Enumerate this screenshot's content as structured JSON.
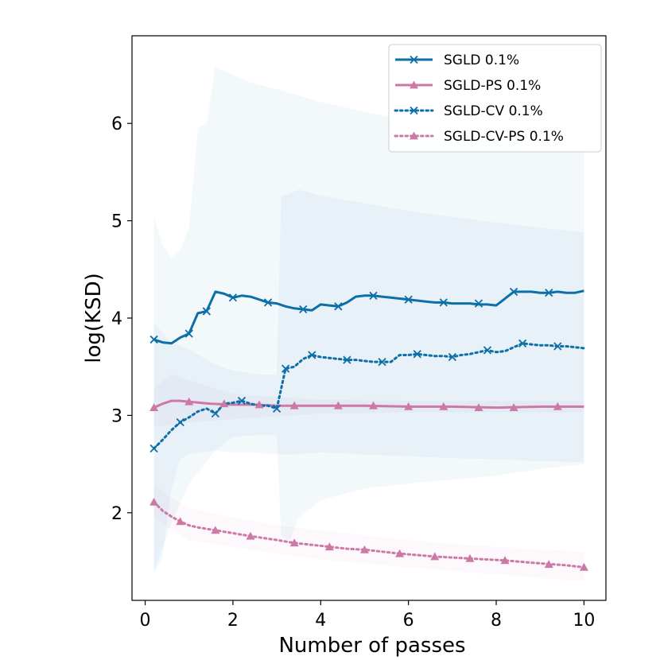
{
  "chart_data": {
    "type": "line",
    "title": "",
    "xlabel": "Number of passes",
    "ylabel": "log(KSD)",
    "xlim": [
      -0.3,
      10.5
    ],
    "ylim": [
      1.1,
      6.9
    ],
    "xticks": [
      0,
      2,
      4,
      6,
      8,
      10
    ],
    "yticks": [
      2,
      3,
      4,
      5,
      6
    ],
    "xtick_labels": [
      "0",
      "2",
      "4",
      "6",
      "8",
      "10"
    ],
    "ytick_labels": [
      "2",
      "3",
      "4",
      "5",
      "6"
    ],
    "grid": false,
    "legend_position": "top-right",
    "series": [
      {
        "name": "SGLD 0.1%",
        "color": "#0c6fa8",
        "linestyle": "solid",
        "marker": "x",
        "x": [
          0.2,
          0.4,
          0.6,
          0.8,
          1.0,
          1.2,
          1.4,
          1.6,
          1.8,
          2.0,
          2.2,
          2.4,
          2.6,
          2.8,
          3.0,
          3.2,
          3.4,
          3.6,
          3.8,
          4.0,
          4.2,
          4.4,
          4.6,
          4.8,
          5.0,
          5.2,
          5.4,
          5.6,
          5.8,
          6.0,
          6.2,
          6.4,
          6.6,
          6.8,
          7.0,
          7.2,
          7.4,
          7.6,
          7.8,
          8.0,
          8.2,
          8.4,
          8.6,
          8.8,
          9.0,
          9.2,
          9.4,
          9.6,
          9.8,
          10.0
        ],
        "values": [
          3.78,
          3.75,
          3.74,
          3.8,
          3.84,
          4.05,
          4.07,
          4.27,
          4.25,
          4.21,
          4.23,
          4.22,
          4.19,
          4.16,
          4.15,
          4.12,
          4.1,
          4.09,
          4.08,
          4.14,
          4.13,
          4.12,
          4.16,
          4.22,
          4.23,
          4.23,
          4.22,
          4.21,
          4.2,
          4.19,
          4.18,
          4.17,
          4.16,
          4.16,
          4.15,
          4.15,
          4.15,
          4.14,
          4.14,
          4.13,
          4.2,
          4.27,
          4.27,
          4.27,
          4.26,
          4.26,
          4.27,
          4.26,
          4.26,
          4.28
        ],
        "markers_x": [
          0.2,
          1.0,
          1.4,
          2.0,
          2.8,
          3.6,
          4.4,
          5.2,
          6.0,
          6.8,
          7.6,
          8.4,
          9.2
        ],
        "markers_y": [
          3.78,
          3.84,
          4.07,
          4.21,
          4.16,
          4.09,
          4.12,
          4.23,
          4.19,
          4.16,
          4.15,
          4.27,
          4.26
        ],
        "band_x": [
          0.2,
          0.4,
          0.6,
          0.8,
          1.0,
          1.2,
          1.4,
          1.6,
          2.0,
          2.4,
          3.0,
          3.4,
          4.0,
          5.0,
          6.0,
          7.0,
          8.0,
          9.0,
          10.0
        ],
        "band_upper": [
          5.05,
          4.75,
          4.62,
          4.7,
          4.93,
          5.95,
          6.0,
          6.58,
          6.5,
          6.42,
          6.35,
          6.3,
          6.22,
          6.12,
          6.02,
          5.95,
          5.85,
          5.8,
          5.75
        ],
        "band_lower": [
          1.38,
          1.55,
          2.25,
          2.55,
          2.6,
          2.62,
          2.63,
          2.64,
          2.62,
          2.62,
          2.6,
          2.6,
          2.62,
          2.6,
          2.58,
          2.56,
          2.55,
          2.53,
          2.52
        ]
      },
      {
        "name": "SGLD-PS 0.1%",
        "color": "#cc79a7",
        "linestyle": "solid",
        "marker": "triangle",
        "x": [
          0.2,
          0.4,
          0.6,
          0.8,
          1.0,
          1.5,
          2.0,
          2.5,
          3.0,
          3.5,
          4.0,
          5.0,
          6.0,
          7.0,
          8.0,
          9.0,
          10.0
        ],
        "values": [
          3.08,
          3.12,
          3.15,
          3.15,
          3.14,
          3.12,
          3.11,
          3.11,
          3.1,
          3.1,
          3.1,
          3.1,
          3.09,
          3.09,
          3.08,
          3.09,
          3.09
        ],
        "markers_x": [
          0.2,
          1.0,
          1.8,
          2.6,
          3.4,
          4.4,
          5.2,
          6.0,
          6.8,
          7.6,
          8.4,
          9.4
        ],
        "markers_y": [
          3.08,
          3.14,
          3.12,
          3.11,
          3.1,
          3.1,
          3.1,
          3.09,
          3.09,
          3.08,
          3.08,
          3.09
        ],
        "band_x": [
          0.2,
          0.6,
          1.0,
          2.0,
          4.0,
          6.0,
          8.0,
          10.0
        ],
        "band_upper": [
          3.28,
          3.42,
          3.36,
          3.22,
          3.16,
          3.15,
          3.15,
          3.15
        ],
        "band_lower": [
          2.88,
          2.9,
          2.93,
          2.96,
          3.02,
          3.03,
          3.03,
          3.03
        ]
      },
      {
        "name": "SGLD-CV 0.1%",
        "color": "#0c6fa8",
        "linestyle": "dotted",
        "marker": "x",
        "x": [
          0.2,
          0.4,
          0.6,
          0.8,
          1.0,
          1.2,
          1.4,
          1.6,
          1.8,
          2.0,
          2.2,
          2.4,
          2.6,
          2.8,
          3.0,
          3.2,
          3.4,
          3.6,
          3.8,
          4.0,
          4.2,
          4.4,
          4.6,
          4.8,
          5.0,
          5.2,
          5.4,
          5.6,
          5.8,
          6.0,
          6.2,
          6.4,
          6.6,
          6.8,
          7.0,
          7.2,
          7.4,
          7.6,
          7.8,
          8.0,
          8.2,
          8.4,
          8.6,
          8.8,
          9.0,
          9.2,
          9.4,
          9.6,
          9.8,
          10.0
        ],
        "values": [
          2.66,
          2.75,
          2.85,
          2.93,
          2.98,
          3.04,
          3.07,
          3.02,
          3.12,
          3.13,
          3.15,
          3.12,
          3.1,
          3.1,
          3.07,
          3.48,
          3.5,
          3.58,
          3.62,
          3.6,
          3.59,
          3.58,
          3.57,
          3.57,
          3.56,
          3.55,
          3.55,
          3.55,
          3.62,
          3.62,
          3.63,
          3.62,
          3.61,
          3.61,
          3.6,
          3.62,
          3.63,
          3.65,
          3.67,
          3.65,
          3.66,
          3.7,
          3.74,
          3.73,
          3.72,
          3.72,
          3.71,
          3.71,
          3.7,
          3.69
        ],
        "markers_x": [
          0.2,
          0.8,
          1.6,
          2.2,
          3.0,
          3.2,
          3.8,
          4.6,
          5.4,
          6.2,
          7.0,
          7.8,
          8.6,
          9.4
        ],
        "markers_y": [
          2.66,
          2.93,
          3.02,
          3.15,
          3.07,
          3.48,
          3.62,
          3.57,
          3.55,
          3.63,
          3.6,
          3.67,
          3.74,
          3.71
        ],
        "band_x": [
          0.2,
          0.6,
          1.0,
          1.6,
          2.0,
          2.6,
          3.0,
          3.1,
          3.3,
          3.5,
          4.0,
          5.0,
          6.0,
          7.0,
          8.0,
          9.0,
          10.0
        ],
        "band_upper": [
          3.95,
          3.75,
          3.68,
          3.52,
          3.46,
          3.42,
          3.42,
          5.25,
          5.28,
          5.32,
          5.26,
          5.18,
          5.1,
          5.04,
          4.98,
          4.93,
          4.88
        ],
        "band_lower": [
          1.4,
          1.9,
          2.3,
          2.64,
          2.78,
          2.8,
          2.8,
          1.75,
          1.72,
          1.95,
          2.13,
          2.25,
          2.3,
          2.34,
          2.38,
          2.45,
          2.5
        ]
      },
      {
        "name": "SGLD-CV-PS 0.1%",
        "color": "#cc79a7",
        "linestyle": "dotted",
        "marker": "triangle",
        "x": [
          0.2,
          0.4,
          0.6,
          0.8,
          1.0,
          1.2,
          1.6,
          2.0,
          2.4,
          3.0,
          3.4,
          4.0,
          4.6,
          5.0,
          5.8,
          6.6,
          7.4,
          8.2,
          9.0,
          9.6,
          10.0
        ],
        "values": [
          2.11,
          2.02,
          1.96,
          1.91,
          1.87,
          1.85,
          1.82,
          1.79,
          1.76,
          1.72,
          1.69,
          1.66,
          1.63,
          1.62,
          1.58,
          1.55,
          1.53,
          1.51,
          1.48,
          1.46,
          1.44
        ],
        "markers_x": [
          0.2,
          0.8,
          1.6,
          2.4,
          3.4,
          4.2,
          5.0,
          5.8,
          6.6,
          7.4,
          8.2,
          9.2,
          10.0
        ],
        "markers_y": [
          2.11,
          1.91,
          1.82,
          1.76,
          1.69,
          1.65,
          1.62,
          1.58,
          1.55,
          1.53,
          1.51,
          1.47,
          1.44
        ],
        "band_x": [
          0.2,
          0.6,
          1.0,
          2.0,
          3.0,
          4.0,
          5.0,
          6.0,
          7.0,
          8.0,
          9.0,
          10.0
        ],
        "band_upper": [
          2.28,
          2.15,
          2.05,
          1.95,
          1.87,
          1.82,
          1.77,
          1.72,
          1.68,
          1.65,
          1.62,
          1.6
        ],
        "band_lower": [
          1.95,
          1.82,
          1.72,
          1.65,
          1.58,
          1.52,
          1.48,
          1.44,
          1.4,
          1.37,
          1.33,
          1.3
        ]
      }
    ]
  }
}
